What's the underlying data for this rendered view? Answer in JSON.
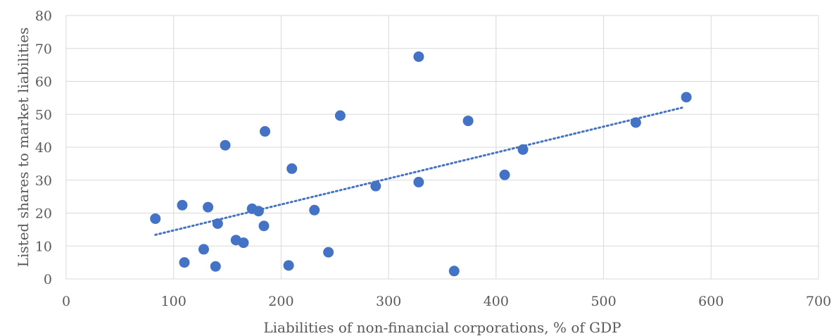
{
  "chart_data": {
    "type": "scatter",
    "title": "",
    "xlabel": "Liabilities of non-financial corporations, % of GDP",
    "ylabel": "Listed shares to market liabilities",
    "xlim": [
      0,
      700
    ],
    "ylim": [
      0,
      80
    ],
    "x_ticks": [
      0,
      100,
      200,
      300,
      400,
      500,
      600,
      700
    ],
    "y_ticks": [
      0,
      10,
      20,
      30,
      40,
      50,
      60,
      70,
      80
    ],
    "grid": true,
    "legend": "none",
    "point_color": "#4472c4",
    "trendline": {
      "type": "linear",
      "style": "dotted",
      "color": "#4472c4",
      "from": [
        83,
        13.4
      ],
      "to": [
        573,
        52.0
      ]
    },
    "series": [
      {
        "points": [
          {
            "x": 83,
            "y": 18.3
          },
          {
            "x": 108,
            "y": 22.4
          },
          {
            "x": 110,
            "y": 5.0
          },
          {
            "x": 128,
            "y": 9.0
          },
          {
            "x": 132,
            "y": 21.8
          },
          {
            "x": 139,
            "y": 3.8
          },
          {
            "x": 141,
            "y": 16.8
          },
          {
            "x": 148,
            "y": 40.6
          },
          {
            "x": 158,
            "y": 11.8
          },
          {
            "x": 165,
            "y": 11.0
          },
          {
            "x": 173,
            "y": 21.3
          },
          {
            "x": 179,
            "y": 20.6
          },
          {
            "x": 184,
            "y": 16.1
          },
          {
            "x": 185,
            "y": 44.8
          },
          {
            "x": 207,
            "y": 4.1
          },
          {
            "x": 210,
            "y": 33.5
          },
          {
            "x": 231,
            "y": 20.9
          },
          {
            "x": 244,
            "y": 8.1
          },
          {
            "x": 255,
            "y": 49.6
          },
          {
            "x": 288,
            "y": 28.2
          },
          {
            "x": 328,
            "y": 67.5
          },
          {
            "x": 328,
            "y": 29.4
          },
          {
            "x": 361,
            "y": 2.4
          },
          {
            "x": 374,
            "y": 48.0
          },
          {
            "x": 408,
            "y": 31.6
          },
          {
            "x": 425,
            "y": 39.3
          },
          {
            "x": 530,
            "y": 47.5
          },
          {
            "x": 577,
            "y": 55.2
          }
        ]
      }
    ]
  }
}
